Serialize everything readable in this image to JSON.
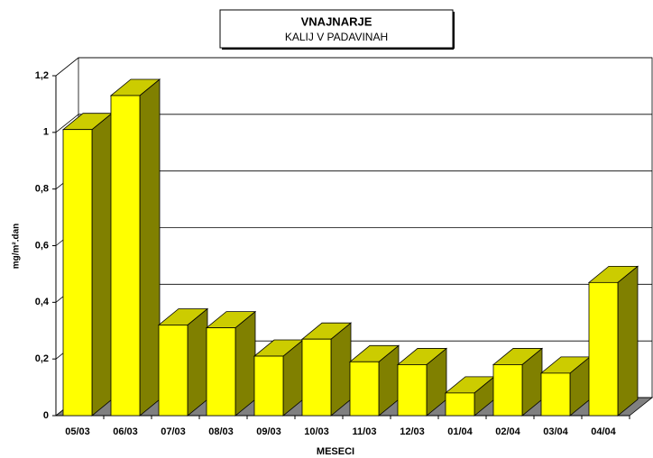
{
  "chart_data": {
    "type": "bar3d",
    "title": "VNAJNARJE",
    "subtitle": "KALIJ V PADAVINAH",
    "x_label": "MESECI",
    "y_label": "mg/m².dan",
    "categories": [
      "05/03",
      "06/03",
      "07/03",
      "08/03",
      "09/03",
      "10/03",
      "11/03",
      "12/03",
      "01/04",
      "02/04",
      "03/04",
      "04/04"
    ],
    "values": [
      1.01,
      1.13,
      0.32,
      0.31,
      0.21,
      0.27,
      0.19,
      0.18,
      0.08,
      0.18,
      0.15,
      0.47
    ],
    "color": "#ffff00",
    "ylim": [
      0,
      1.2
    ],
    "yticks": [
      0,
      {
        "value": 0.2,
        "label": "0,2"
      },
      {
        "value": 0.4,
        "label": "0,4"
      },
      {
        "value": 0.6,
        "label": "0,6"
      },
      {
        "value": 0.8,
        "label": "0,8"
      },
      1,
      {
        "value": 1.2,
        "label": "1,2"
      }
    ],
    "grid": true
  }
}
